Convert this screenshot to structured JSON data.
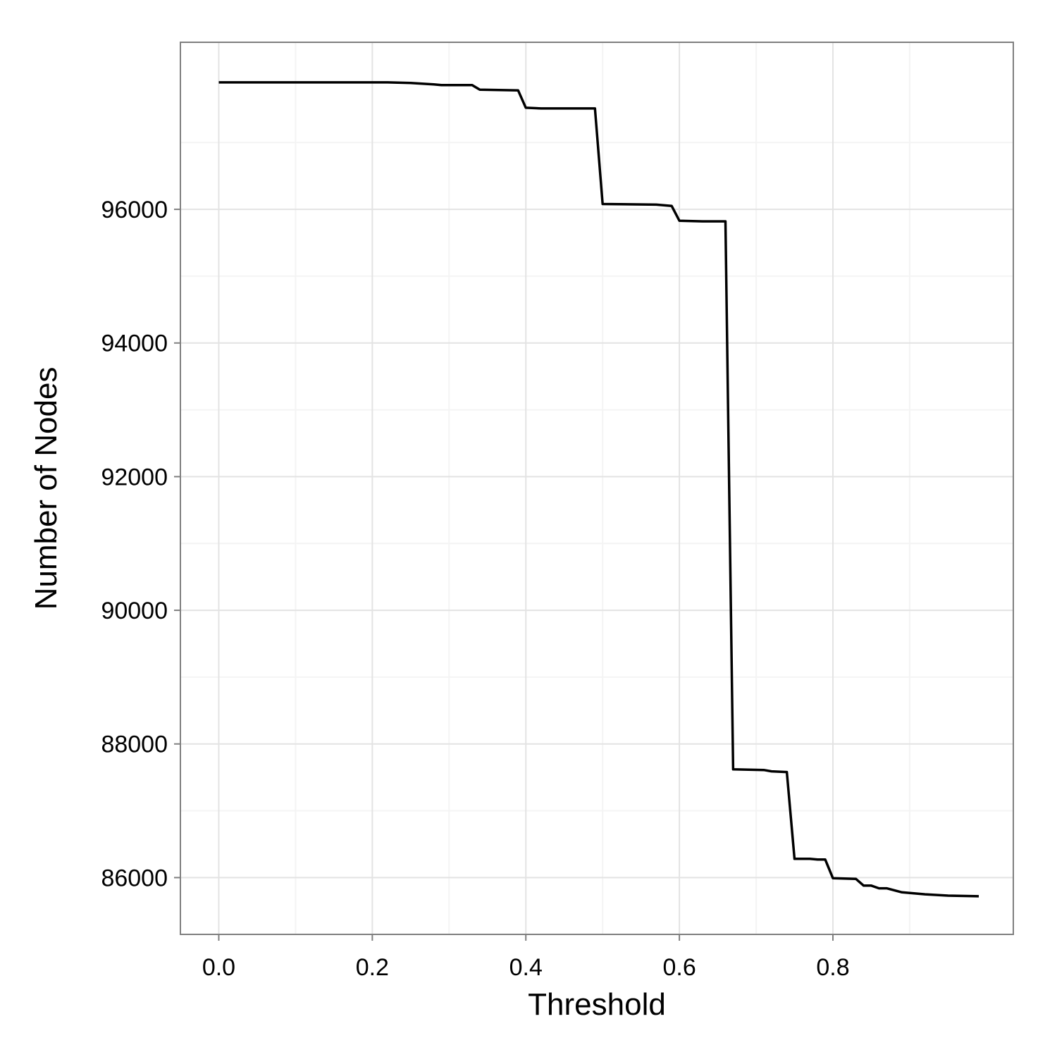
{
  "chart_data": {
    "type": "line",
    "title": "",
    "xlabel": "Threshold",
    "ylabel": "Number of Nodes",
    "xlim": [
      -0.05,
      1.035
    ],
    "ylim": [
      85150,
      98500
    ],
    "x_ticks": [
      0.0,
      0.2,
      0.4,
      0.6,
      0.8
    ],
    "x_tick_labels": [
      "0.0",
      "0.2",
      "0.4",
      "0.6",
      "0.8"
    ],
    "y_ticks": [
      86000,
      88000,
      90000,
      92000,
      94000,
      96000
    ],
    "y_tick_labels": [
      "86000",
      "88000",
      "90000",
      "92000",
      "94000",
      "96000"
    ],
    "grid": true,
    "legend": "none",
    "colors": {
      "line": "#000000",
      "panel_border": "#7f7f7f",
      "grid_major": "#e3e3e3",
      "grid_minor": "#f4f4f4",
      "background": "#ffffff"
    },
    "series": [
      {
        "x": [
          0.0,
          0.22,
          0.25,
          0.28,
          0.29,
          0.33,
          0.34,
          0.39,
          0.4,
          0.42,
          0.49,
          0.5,
          0.57,
          0.59,
          0.6,
          0.63,
          0.66,
          0.67,
          0.71,
          0.72,
          0.74,
          0.75,
          0.77,
          0.78,
          0.79,
          0.8,
          0.83,
          0.84,
          0.85,
          0.86,
          0.87,
          0.89,
          0.92,
          0.95,
          0.99
        ],
        "y": [
          97900,
          97900,
          97890,
          97870,
          97860,
          97860,
          97790,
          97780,
          97520,
          97510,
          97510,
          96080,
          96070,
          96050,
          95830,
          95820,
          95820,
          87620,
          87610,
          87590,
          87580,
          86280,
          86280,
          86270,
          86270,
          85990,
          85980,
          85880,
          85880,
          85840,
          85840,
          85780,
          85750,
          85730,
          85720
        ]
      }
    ]
  }
}
